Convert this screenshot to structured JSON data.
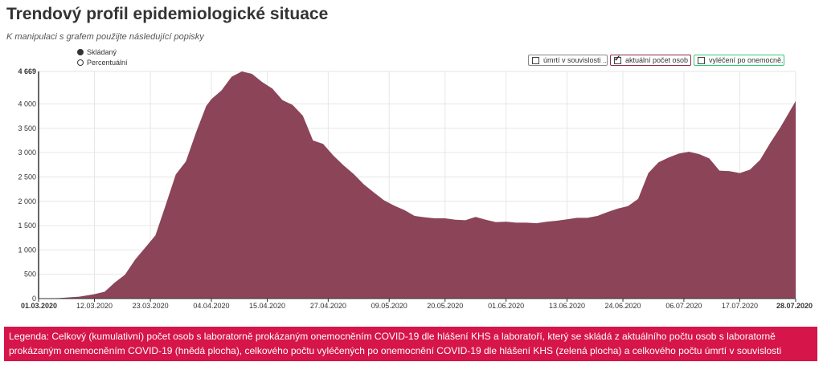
{
  "header": {
    "title": "Trendový profil epidemiologické situace",
    "subtitle": "K manipulaci s grafem použijte následující popisky"
  },
  "view_options": [
    {
      "label": "Skládaný",
      "selected": true
    },
    {
      "label": "Percentuální",
      "selected": false
    }
  ],
  "legend_toggles": [
    {
      "label": "úmrtí v souvislosti ...",
      "checked": false,
      "color": "#888888"
    },
    {
      "label": "aktuální počet osob ...",
      "checked": true,
      "color": "#8b2e44"
    },
    {
      "label": "vyléčení po onemocně...",
      "checked": false,
      "color": "#2ecc71"
    }
  ],
  "chart_data": {
    "type": "area",
    "ylim": [
      0,
      4669
    ],
    "yticks": [
      "0",
      "500",
      "1 000",
      "1 500",
      "2 000",
      "2 500",
      "3 000",
      "3 500",
      "4 000",
      "4 669"
    ],
    "ytick_values": [
      0,
      500,
      1000,
      1500,
      2000,
      2500,
      3000,
      3500,
      4000,
      4669
    ],
    "xlim": [
      "2020-03-01",
      "2020-07-28"
    ],
    "xticks": [
      "01.03.2020",
      "12.03.2020",
      "23.03.2020",
      "04.04.2020",
      "15.04.2020",
      "27.04.2020",
      "09.05.2020",
      "20.05.2020",
      "01.06.2020",
      "13.06.2020",
      "24.06.2020",
      "06.07.2020",
      "17.07.2020",
      "28.07.2020"
    ],
    "xtick_dates": [
      "2020-03-01",
      "2020-03-12",
      "2020-03-23",
      "2020-04-04",
      "2020-04-15",
      "2020-04-27",
      "2020-05-09",
      "2020-05-20",
      "2020-06-01",
      "2020-06-13",
      "2020-06-24",
      "2020-07-06",
      "2020-07-17",
      "2020-07-28"
    ],
    "area_color": "#8b4458",
    "series": [
      {
        "name": "aktuální počet osob ...",
        "points": [
          [
            "2020-03-01",
            0
          ],
          [
            "2020-03-05",
            10
          ],
          [
            "2020-03-09",
            40
          ],
          [
            "2020-03-12",
            90
          ],
          [
            "2020-03-14",
            140
          ],
          [
            "2020-03-16",
            330
          ],
          [
            "2020-03-18",
            490
          ],
          [
            "2020-03-20",
            800
          ],
          [
            "2020-03-22",
            1050
          ],
          [
            "2020-03-24",
            1300
          ],
          [
            "2020-03-26",
            1920
          ],
          [
            "2020-03-28",
            2550
          ],
          [
            "2020-03-30",
            2820
          ],
          [
            "2020-04-01",
            3420
          ],
          [
            "2020-04-03",
            3960
          ],
          [
            "2020-04-04",
            4100
          ],
          [
            "2020-04-06",
            4280
          ],
          [
            "2020-04-08",
            4560
          ],
          [
            "2020-04-10",
            4669
          ],
          [
            "2020-04-12",
            4620
          ],
          [
            "2020-04-14",
            4450
          ],
          [
            "2020-04-16",
            4320
          ],
          [
            "2020-04-18",
            4080
          ],
          [
            "2020-04-20",
            3980
          ],
          [
            "2020-04-22",
            3760
          ],
          [
            "2020-04-24",
            3250
          ],
          [
            "2020-04-26",
            3180
          ],
          [
            "2020-04-28",
            2940
          ],
          [
            "2020-04-30",
            2740
          ],
          [
            "2020-05-02",
            2560
          ],
          [
            "2020-05-04",
            2350
          ],
          [
            "2020-05-06",
            2180
          ],
          [
            "2020-05-08",
            2020
          ],
          [
            "2020-05-10",
            1910
          ],
          [
            "2020-05-12",
            1820
          ],
          [
            "2020-05-14",
            1700
          ],
          [
            "2020-05-16",
            1670
          ],
          [
            "2020-05-18",
            1650
          ],
          [
            "2020-05-20",
            1650
          ],
          [
            "2020-05-22",
            1620
          ],
          [
            "2020-05-24",
            1610
          ],
          [
            "2020-05-26",
            1680
          ],
          [
            "2020-05-28",
            1620
          ],
          [
            "2020-05-30",
            1570
          ],
          [
            "2020-06-01",
            1580
          ],
          [
            "2020-06-03",
            1560
          ],
          [
            "2020-06-05",
            1560
          ],
          [
            "2020-06-07",
            1550
          ],
          [
            "2020-06-09",
            1580
          ],
          [
            "2020-06-11",
            1600
          ],
          [
            "2020-06-13",
            1630
          ],
          [
            "2020-06-15",
            1660
          ],
          [
            "2020-06-17",
            1660
          ],
          [
            "2020-06-19",
            1700
          ],
          [
            "2020-06-21",
            1780
          ],
          [
            "2020-06-23",
            1850
          ],
          [
            "2020-06-25",
            1900
          ],
          [
            "2020-06-27",
            2050
          ],
          [
            "2020-06-29",
            2580
          ],
          [
            "2020-07-01",
            2800
          ],
          [
            "2020-07-03",
            2900
          ],
          [
            "2020-07-05",
            2980
          ],
          [
            "2020-07-07",
            3020
          ],
          [
            "2020-07-09",
            2970
          ],
          [
            "2020-07-11",
            2880
          ],
          [
            "2020-07-13",
            2630
          ],
          [
            "2020-07-15",
            2620
          ],
          [
            "2020-07-17",
            2580
          ],
          [
            "2020-07-19",
            2650
          ],
          [
            "2020-07-21",
            2850
          ],
          [
            "2020-07-23",
            3200
          ],
          [
            "2020-07-25",
            3520
          ],
          [
            "2020-07-28",
            4060
          ]
        ]
      }
    ]
  },
  "footer": {
    "text": "Legenda: Celkový (kumulativní) počet osob s laboratorně prokázaným onemocněním COVID-19 dle hlášení KHS a laboratoří, který se skládá z aktuálního počtu osob s laboratorně prokázaným onemocněním COVID-19 (hnědá plocha), celkového počtu vyléčených po onemocnění COVID-19 dle hlášení KHS (zelená plocha) a celkového počtu úmrtí v souvislosti"
  }
}
